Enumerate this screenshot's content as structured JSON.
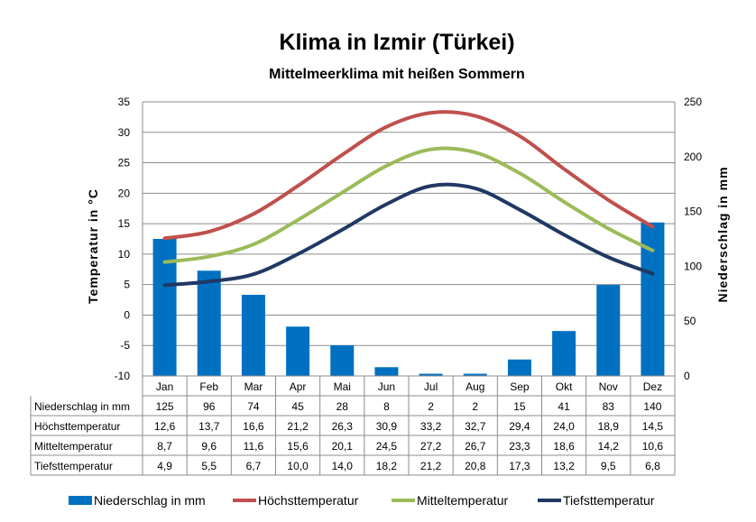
{
  "chart_data": {
    "type": "bar+line",
    "title": "Klima in Izmir (Türkei)",
    "subtitle": "Mittelmeerklima mit heißen Sommern",
    "ylabel_left": "Temperatur  in  °C",
    "ylabel_right": "Niederschlag  in  mm",
    "categories": [
      "Jan",
      "Feb",
      "Mar",
      "Apr",
      "Mai",
      "Jun",
      "Jul",
      "Aug",
      "Sep",
      "Okt",
      "Nov",
      "Dez"
    ],
    "ylim_left": [
      -10,
      35
    ],
    "yticks_left": [
      "35",
      "30",
      "25",
      "20",
      "15",
      "10",
      "5",
      "0",
      "-5",
      "-10"
    ],
    "ylim_right": [
      0,
      250
    ],
    "yticks_right": [
      "250",
      "200",
      "150",
      "100",
      "50",
      "0"
    ],
    "grid": "horizontal",
    "legend_position": "bottom",
    "series": [
      {
        "name": "Niederschlag in mm",
        "kind": "bar",
        "axis": "right",
        "color": "#0070C0",
        "values": [
          125,
          96,
          74,
          45,
          28,
          8,
          2,
          2,
          15,
          41,
          83,
          140
        ],
        "labels": [
          "125",
          "96",
          "74",
          "45",
          "28",
          "8",
          "2",
          "2",
          "15",
          "41",
          "83",
          "140"
        ]
      },
      {
        "name": "Höchsttemperatur",
        "kind": "line",
        "axis": "left",
        "color": "#C0504D",
        "values": [
          12.6,
          13.7,
          16.6,
          21.2,
          26.3,
          30.9,
          33.2,
          32.7,
          29.4,
          24.0,
          18.9,
          14.5
        ],
        "labels": [
          "12,6",
          "13,7",
          "16,6",
          "21,2",
          "26,3",
          "30,9",
          "33,2",
          "32,7",
          "29,4",
          "24,0",
          "18,9",
          "14,5"
        ]
      },
      {
        "name": "Mitteltemperatur",
        "kind": "line",
        "axis": "left",
        "color": "#9BBB59",
        "values": [
          8.7,
          9.6,
          11.6,
          15.6,
          20.1,
          24.5,
          27.2,
          26.7,
          23.3,
          18.6,
          14.2,
          10.6
        ],
        "labels": [
          "8,7",
          "9,6",
          "11,6",
          "15,6",
          "20,1",
          "24,5",
          "27,2",
          "26,7",
          "23,3",
          "18,6",
          "14,2",
          "10,6"
        ]
      },
      {
        "name": "Tiefsttemperatur",
        "kind": "line",
        "axis": "left",
        "color": "#1F3864",
        "values": [
          4.9,
          5.5,
          6.7,
          10.0,
          14.0,
          18.2,
          21.2,
          20.8,
          17.3,
          13.2,
          9.5,
          6.8
        ],
        "labels": [
          "4,9",
          "5,5",
          "6,7",
          "10,0",
          "14,0",
          "18,2",
          "21,2",
          "20,8",
          "17,3",
          "13,2",
          "9,5",
          "6,8"
        ]
      }
    ]
  }
}
